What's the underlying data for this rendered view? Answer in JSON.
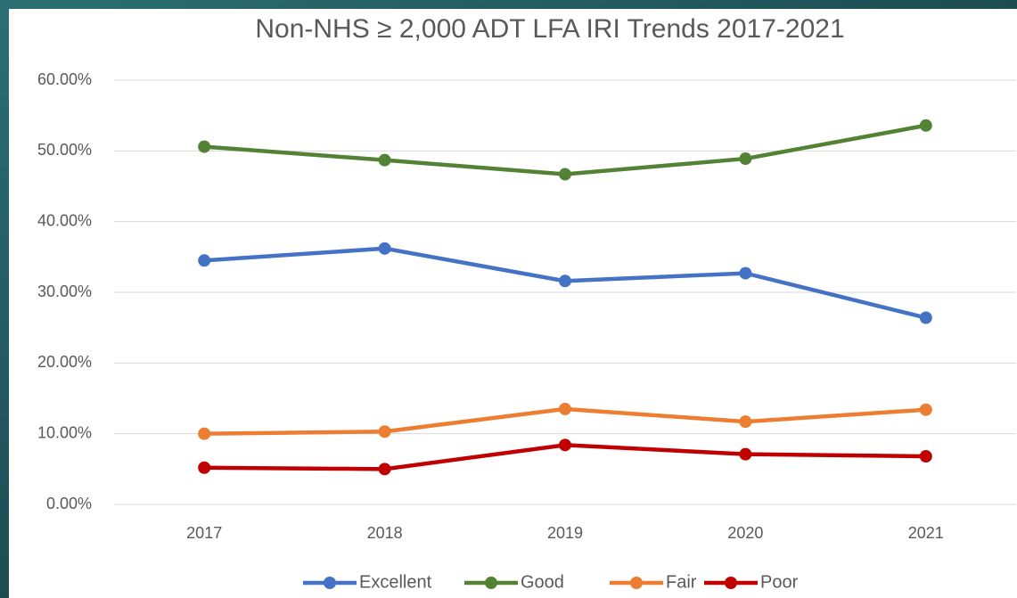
{
  "chart_data": {
    "type": "line",
    "title": "Non-NHS ≥ 2,000 ADT LFA IRI Trends 2017-2021",
    "categories": [
      "2017",
      "2018",
      "2019",
      "2020",
      "2021"
    ],
    "series": [
      {
        "name": "Excellent",
        "color": "#4472c4",
        "values": [
          34.5,
          36.2,
          31.6,
          32.7,
          26.4
        ]
      },
      {
        "name": "Good",
        "color": "#548235",
        "values": [
          50.6,
          48.7,
          46.7,
          48.9,
          53.6
        ]
      },
      {
        "name": "Fair",
        "color": "#ed7d31",
        "values": [
          10.0,
          10.3,
          13.5,
          11.7,
          13.4
        ]
      },
      {
        "name": "Poor",
        "color": "#c00000",
        "values": [
          5.2,
          5.0,
          8.4,
          7.1,
          6.8
        ]
      }
    ],
    "ylim": [
      0,
      60
    ],
    "yticks": [
      {
        "value": 0,
        "label": "0.00%"
      },
      {
        "value": 10,
        "label": "10.00%"
      },
      {
        "value": 20,
        "label": "20.00%"
      },
      {
        "value": 30,
        "label": "30.00%"
      },
      {
        "value": 40,
        "label": "40.00%"
      },
      {
        "value": 50,
        "label": "50.00%"
      },
      {
        "value": 60,
        "label": "60.00%"
      }
    ],
    "grid": true,
    "legend": "bottom"
  }
}
